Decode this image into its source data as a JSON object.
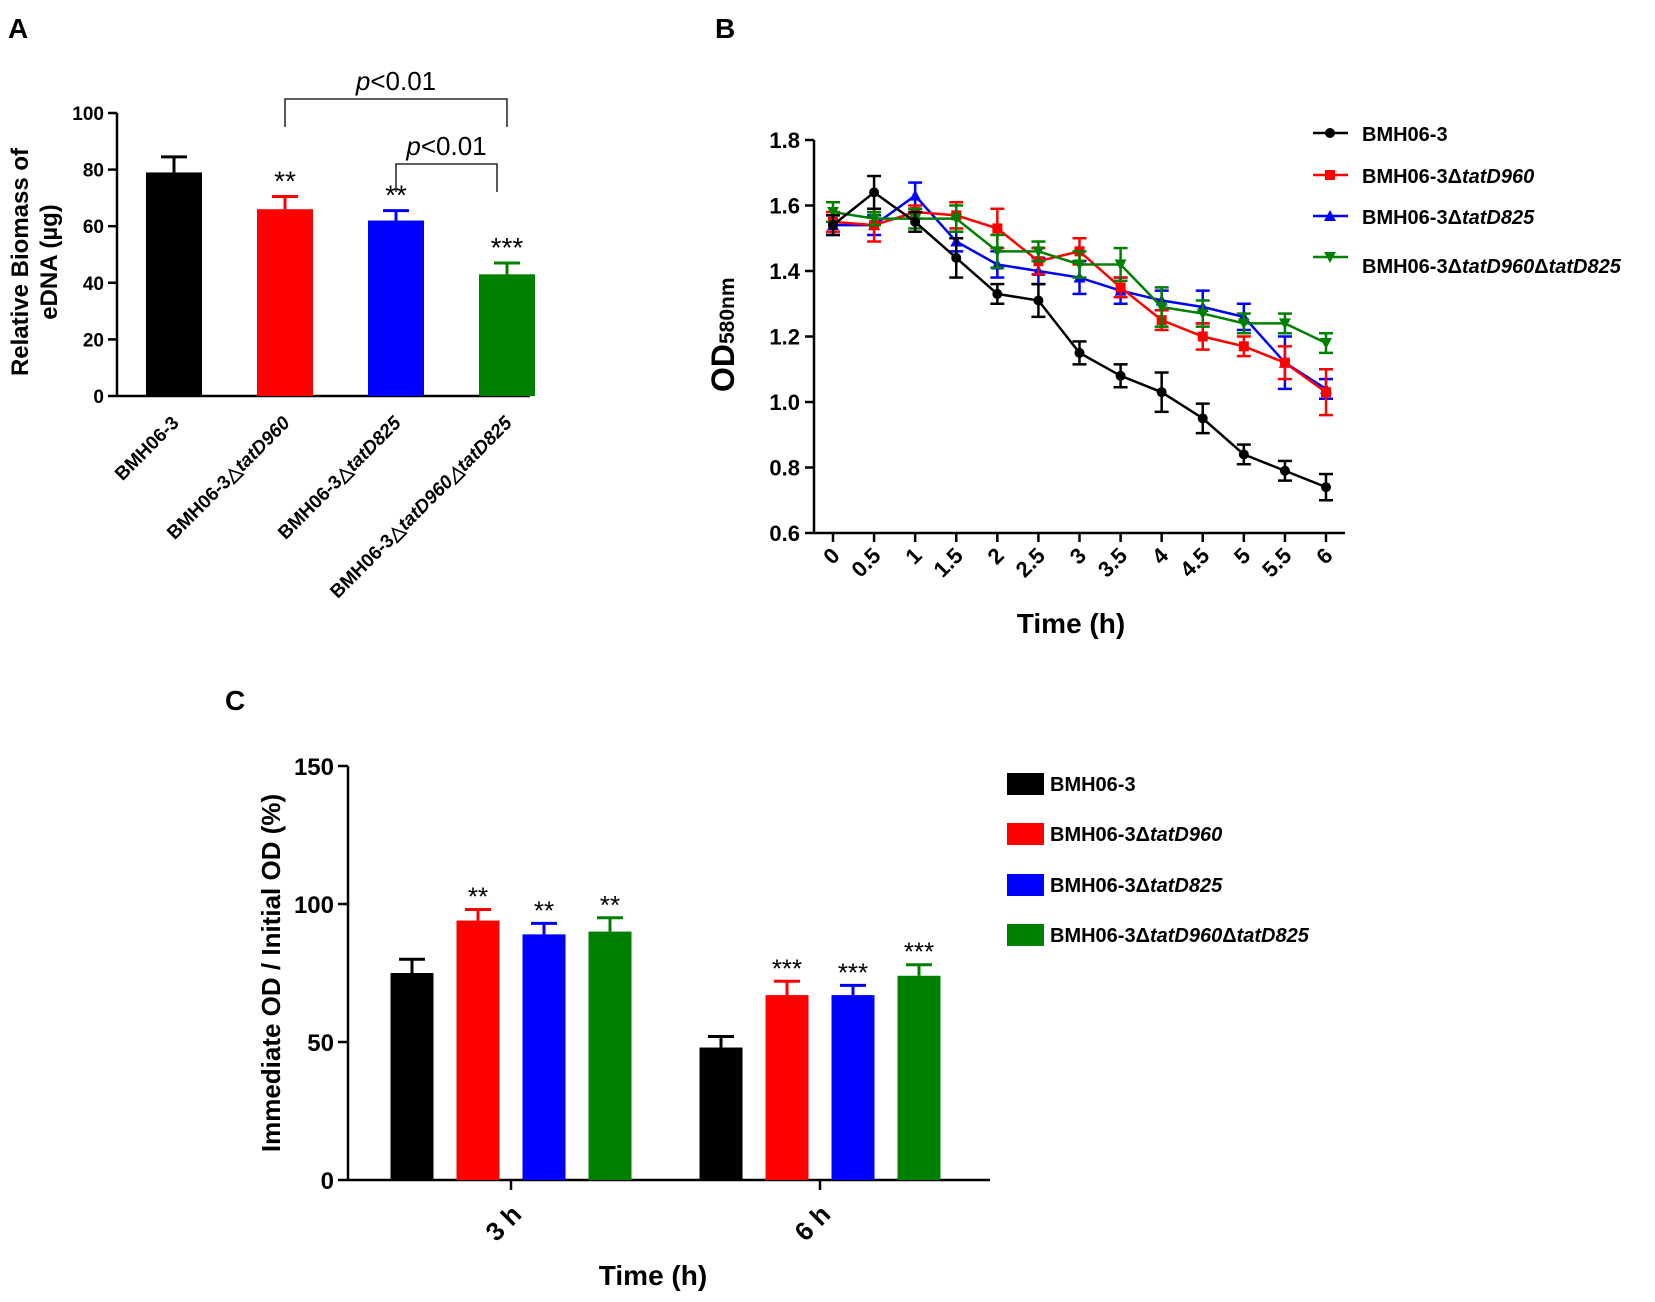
{
  "colors": {
    "black": "#000000",
    "red": "#ff0000",
    "blue": "#0000ff",
    "green": "#008000"
  },
  "chart_data": [
    {
      "panel": "A",
      "type": "bar",
      "ylabel_line1": "Relative Biomass of",
      "ylabel_line2": "eDNA (µg)",
      "ylim": [
        0,
        100
      ],
      "yticks": [
        "0",
        "20",
        "40",
        "60",
        "80",
        "100"
      ],
      "categories": [
        {
          "pre": "BMH06-3",
          "ital": ""
        },
        {
          "pre": "BMH06-3△",
          "ital": "tatD960"
        },
        {
          "pre": "BMH06-3△",
          "ital": "tatD825"
        },
        {
          "pre": "BMH06-3△",
          "ital": "tatD960△tatD825"
        }
      ],
      "values": [
        79,
        66,
        62,
        43
      ],
      "errors": [
        5.5,
        4.5,
        3.5,
        4
      ],
      "significance": [
        "",
        "**",
        "**",
        "***"
      ],
      "colors": [
        "#000000",
        "#ff0000",
        "#0000ff",
        "#008000"
      ],
      "brackets": [
        {
          "from": 1,
          "to": 3,
          "p": "p",
          "rest": "<0.01"
        },
        {
          "from": 2,
          "to": 3,
          "p": "p",
          "rest": "<0.01"
        }
      ]
    },
    {
      "panel": "B",
      "type": "line",
      "xlabel": "Time (h)",
      "ylabel_main": "OD",
      "ylabel_sub": "580nm",
      "x": [
        0,
        0.5,
        1,
        1.5,
        2,
        2.5,
        3,
        3.5,
        4,
        4.5,
        5,
        5.5,
        6
      ],
      "xticks": [
        "0",
        "0.5",
        "1",
        "1.5",
        "2",
        "2.5",
        "3",
        "3.5",
        "4",
        "4.5",
        "5",
        "5.5",
        "6"
      ],
      "ylim": [
        0.6,
        1.8
      ],
      "yticks": [
        "0.6",
        "0.8",
        "1.0",
        "1.2",
        "1.4",
        "1.6",
        "1.8"
      ],
      "series": [
        {
          "pre": "BMH06-3",
          "ital": "",
          "marker": "circle",
          "color": "#000000",
          "values": [
            1.54,
            1.64,
            1.55,
            1.44,
            1.33,
            1.31,
            1.15,
            1.08,
            1.03,
            0.95,
            0.84,
            0.79,
            0.74
          ],
          "errors": [
            0.03,
            0.05,
            0.03,
            0.06,
            0.03,
            0.05,
            0.035,
            0.035,
            0.06,
            0.045,
            0.03,
            0.03,
            0.04
          ]
        },
        {
          "pre": "BMH06-3Δ",
          "ital": "tatD960",
          "marker": "square",
          "color": "#ff0000",
          "values": [
            1.55,
            1.54,
            1.58,
            1.57,
            1.53,
            1.43,
            1.46,
            1.35,
            1.25,
            1.2,
            1.17,
            1.12,
            1.03
          ],
          "errors": [
            0.03,
            0.05,
            0.02,
            0.04,
            0.06,
            0.04,
            0.04,
            0.03,
            0.03,
            0.04,
            0.03,
            0.05,
            0.07
          ]
        },
        {
          "pre": "BMH06-3Δ",
          "ital": "tatD825",
          "marker": "triangle-up",
          "color": "#0000ff",
          "values": [
            1.54,
            1.54,
            1.63,
            1.49,
            1.42,
            1.4,
            1.38,
            1.34,
            1.31,
            1.29,
            1.26,
            1.12,
            1.04
          ],
          "errors": [
            0.03,
            0.03,
            0.04,
            0.03,
            0.04,
            0.04,
            0.05,
            0.04,
            0.03,
            0.05,
            0.04,
            0.08,
            0.03
          ]
        },
        {
          "pre": "BMH06-3Δ",
          "ital": "tatD960",
          "pre2": "Δ",
          "ital2": "tatD825",
          "marker": "triangle-down",
          "color": "#008000",
          "values": [
            1.58,
            1.56,
            1.56,
            1.56,
            1.46,
            1.46,
            1.42,
            1.42,
            1.29,
            1.27,
            1.24,
            1.24,
            1.18
          ],
          "errors": [
            0.03,
            0.02,
            0.03,
            0.04,
            0.05,
            0.03,
            0.04,
            0.05,
            0.06,
            0.04,
            0.03,
            0.03,
            0.03
          ]
        }
      ]
    },
    {
      "panel": "C",
      "type": "bar",
      "xlabel": "Time (h)",
      "ylabel": "Immediate OD / Initial OD (%)",
      "ylim": [
        0,
        150
      ],
      "yticks": [
        "0",
        "50",
        "100",
        "150"
      ],
      "categories": [
        "3 h",
        "6 h"
      ],
      "series": [
        {
          "pre": "BMH06-3",
          "ital": "",
          "color": "#000000",
          "values": [
            75,
            48
          ],
          "errors": [
            5,
            4
          ],
          "significance": [
            "",
            ""
          ]
        },
        {
          "pre": "BMH06-3Δ",
          "ital": "tatD960",
          "color": "#ff0000",
          "values": [
            94,
            67
          ],
          "errors": [
            4,
            5
          ],
          "significance": [
            "**",
            "***"
          ]
        },
        {
          "pre": "BMH06-3Δ",
          "ital": "tatD825",
          "color": "#0000ff",
          "values": [
            89,
            67
          ],
          "errors": [
            4,
            3.5
          ],
          "significance": [
            "**",
            "***"
          ]
        },
        {
          "pre": "BMH06-3Δ",
          "ital": "tatD960",
          "pre2": "Δ",
          "ital2": "tatD825",
          "color": "#008000",
          "values": [
            90,
            74
          ],
          "errors": [
            5,
            4
          ],
          "significance": [
            "**",
            "***"
          ]
        }
      ]
    }
  ],
  "panel_labels": [
    "A",
    "B",
    "C"
  ]
}
